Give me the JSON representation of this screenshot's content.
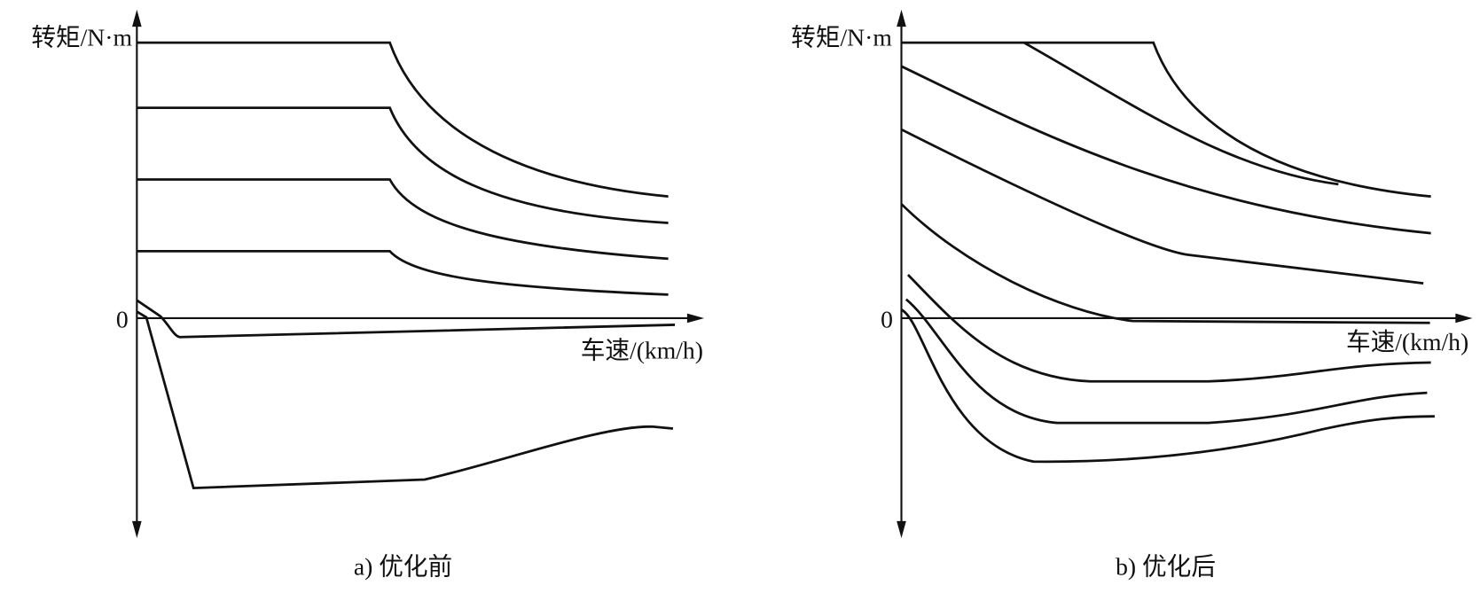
{
  "panels": [
    {
      "y_axis_label": "转矩/N·m",
      "origin_label": "0",
      "x_axis_label": "车速/(km/h)",
      "caption": "a) 优化前"
    },
    {
      "y_axis_label": "转矩/N·m",
      "origin_label": "0",
      "x_axis_label": "车速/(km/h)",
      "caption": "b) 优化后"
    }
  ]
}
